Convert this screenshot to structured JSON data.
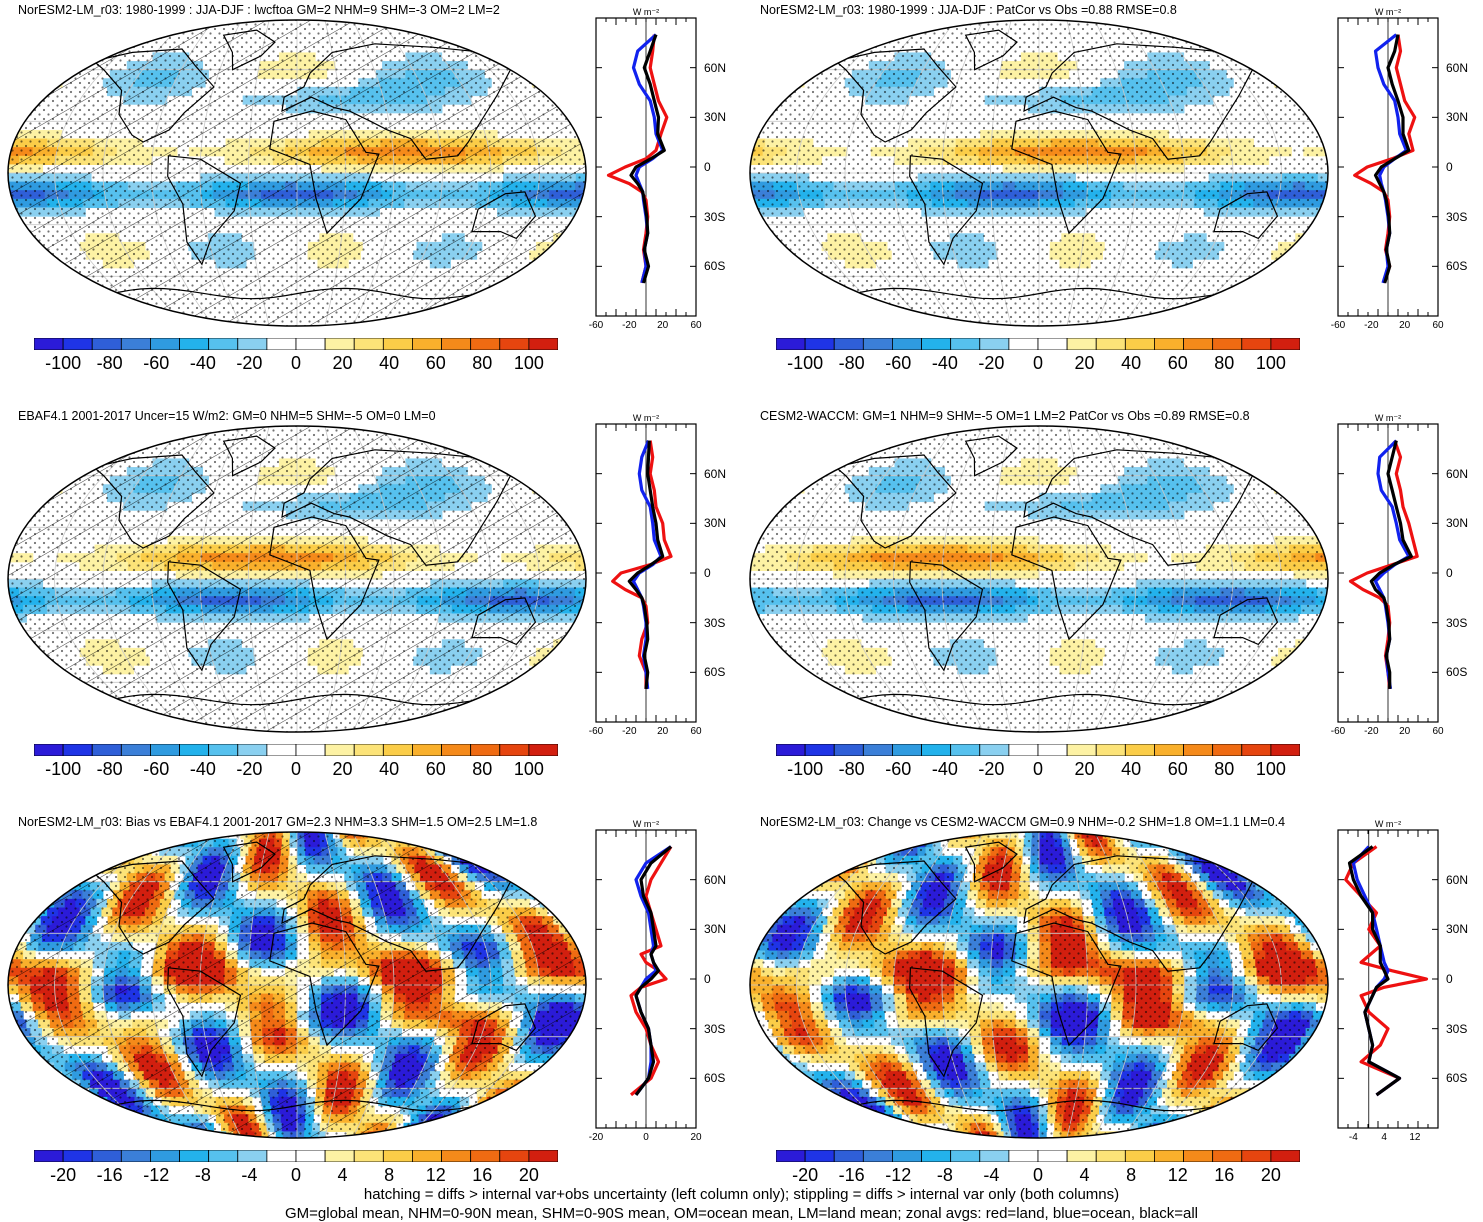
{
  "colors": {
    "palette": [
      "#2b1bd8",
      "#1f34e6",
      "#2f5fd8",
      "#3b7fd8",
      "#2f9be0",
      "#23b2ec",
      "#56c1ee",
      "#8ad0f0",
      "#ffffff",
      "#ffffff",
      "#fdf2a4",
      "#fce378",
      "#fbcd48",
      "#f9b02c",
      "#f58a1a",
      "#ef6b12",
      "#e6450f",
      "#d21f0f"
    ],
    "line_land": "#ee1111",
    "line_ocean": "#1122ee",
    "line_all": "#000000"
  },
  "panels": [
    {
      "title": "NorESM2-LM_r03: 1980-1999 : JJA-DJF : lwcftoa GM=2 NHM=9 SHM=-3 OM=2 LM=2",
      "hatch": true,
      "colorbar_labels": [
        "-100",
        "-80",
        "-60",
        "-40",
        "-20",
        "0",
        "20",
        "40",
        "60",
        "80",
        "100"
      ],
      "zonal_xticks": [
        "-60",
        "-20",
        "20",
        "60"
      ],
      "zonal_unit": "W m⁻²",
      "lat_labels": [
        "60N",
        "30N",
        "0",
        "30S",
        "60S"
      ]
    },
    {
      "title": "NorESM2-LM_r03: 1980-1999 : JJA-DJF : PatCor vs Obs =0.88 RMSE=0.8",
      "hatch": false,
      "colorbar_labels": [
        "-100",
        "-80",
        "-60",
        "-40",
        "-20",
        "0",
        "20",
        "40",
        "60",
        "80",
        "100"
      ],
      "zonal_xticks": [
        "-60",
        "-20",
        "20",
        "60"
      ],
      "zonal_unit": "W m⁻²",
      "lat_labels": [
        "60N",
        "30N",
        "0",
        "30S",
        "60S"
      ]
    },
    {
      "title": "EBAF4.1 2001-2017 Uncer=15 W/m2: GM=0 NHM=5 SHM=-5 OM=0 LM=0",
      "hatch": true,
      "colorbar_labels": [
        "-100",
        "-80",
        "-60",
        "-40",
        "-20",
        "0",
        "20",
        "40",
        "60",
        "80",
        "100"
      ],
      "zonal_xticks": [
        "-60",
        "-20",
        "20",
        "60"
      ],
      "zonal_unit": "W m⁻²",
      "lat_labels": [
        "60N",
        "30N",
        "0",
        "30S",
        "60S"
      ]
    },
    {
      "title": "CESM2-WACCM: GM=1 NHM=9 SHM=-5 OM=1 LM=2 PatCor vs Obs =0.89 RMSE=0.8",
      "hatch": false,
      "colorbar_labels": [
        "-100",
        "-80",
        "-60",
        "-40",
        "-20",
        "0",
        "20",
        "40",
        "60",
        "80",
        "100"
      ],
      "zonal_xticks": [
        "-60",
        "-20",
        "20",
        "60"
      ],
      "zonal_unit": "W m⁻²",
      "lat_labels": [
        "60N",
        "30N",
        "0",
        "30S",
        "60S"
      ]
    },
    {
      "title": "NorESM2-LM_r03: Bias vs EBAF4.1 2001-2017 GM=2.3 NHM=3.3 SHM=1.5 OM=2.5 LM=1.8",
      "hatch": true,
      "colorbar_labels": [
        "-20",
        "-16",
        "-12",
        "-8",
        "-4",
        "0",
        "4",
        "8",
        "12",
        "16",
        "20"
      ],
      "zonal_xticks": [
        "-20",
        "0",
        "20"
      ],
      "zonal_unit": "W m⁻²",
      "lat_labels": [
        "60N",
        "30N",
        "0",
        "30S",
        "60S"
      ]
    },
    {
      "title": "NorESM2-LM_r03: Change vs CESM2-WACCM GM=0.9 NHM=-0.2 SHM=1.8 OM=1.1 LM=0.4",
      "hatch": false,
      "colorbar_labels": [
        "-20",
        "-16",
        "-12",
        "-8",
        "-4",
        "0",
        "4",
        "8",
        "12",
        "16",
        "20"
      ],
      "zonal_xticks": [
        "-4",
        "4",
        "12"
      ],
      "zonal_unit": "W m⁻²",
      "lat_labels": [
        "60N",
        "30N",
        "0",
        "30S",
        "60S"
      ]
    }
  ],
  "footer": [
    "hatching = diffs > internal var+obs uncertainty (left column only); stippling = diffs > internal var only (both columns)",
    "GM=global mean, NHM=0-90N mean, SHM=0-90S mean, OM=ocean mean, LM=land mean; zonal avgs: red=land, blue=ocean, black=all"
  ],
  "chart_data": [
    {
      "type": "heatmap",
      "title": "NorESM2-LM_r03: 1980-1999 : JJA-DJF : lwcftoa GM=2 NHM=9 SHM=-3 OM=2 LM=2",
      "units": "W m-2",
      "colorbar_range": [
        -100,
        100
      ],
      "colorbar_step": 20,
      "zonal_mean": {
        "type": "line",
        "xlim": [
          -60,
          60
        ],
        "lat": [
          80,
          70,
          60,
          50,
          40,
          30,
          20,
          10,
          5,
          0,
          -5,
          -10,
          -15,
          -20,
          -30,
          -40,
          -50,
          -60,
          -70
        ],
        "series": [
          {
            "name": "land",
            "values": [
              10,
              8,
              5,
              10,
              15,
              25,
              18,
              12,
              0,
              -25,
              -45,
              -20,
              -5,
              0,
              2,
              0,
              -3,
              0,
              -5
            ]
          },
          {
            "name": "ocean",
            "values": [
              12,
              -10,
              -15,
              -8,
              5,
              10,
              12,
              20,
              8,
              -8,
              -12,
              -8,
              -4,
              -3,
              0,
              2,
              -2,
              0,
              -5
            ]
          },
          {
            "name": "all",
            "values": [
              12,
              5,
              -2,
              5,
              10,
              15,
              14,
              22,
              6,
              -12,
              -18,
              -10,
              -4,
              -2,
              1,
              2,
              -2,
              3,
              -3
            ]
          }
        ]
      }
    },
    {
      "type": "heatmap",
      "title": "NorESM2-LM_r03: 1980-1999 : JJA-DJF : PatCor vs Obs =0.88 RMSE=0.8",
      "units": "W m-2",
      "colorbar_range": [
        -100,
        100
      ],
      "colorbar_step": 20,
      "zonal_mean": {
        "type": "line",
        "xlim": [
          -60,
          60
        ],
        "lat": [
          80,
          70,
          60,
          50,
          40,
          30,
          20,
          10,
          5,
          0,
          -5,
          -10,
          -15,
          -20,
          -30,
          -40,
          -50,
          -60,
          -70
        ],
        "series": [
          {
            "name": "land",
            "values": [
              12,
              15,
              10,
              15,
              20,
              32,
              25,
              30,
              5,
              -25,
              -40,
              -20,
              -5,
              0,
              2,
              0,
              -3,
              2,
              -5
            ]
          },
          {
            "name": "ocean",
            "values": [
              10,
              -15,
              -12,
              -5,
              8,
              12,
              14,
              22,
              8,
              -5,
              -10,
              -8,
              -5,
              -3,
              0,
              2,
              -2,
              0,
              -6
            ]
          },
          {
            "name": "all",
            "values": [
              12,
              8,
              0,
              5,
              12,
              18,
              18,
              25,
              8,
              -8,
              -15,
              -10,
              -5,
              -2,
              1,
              2,
              -2,
              2,
              -4
            ]
          }
        ]
      }
    },
    {
      "type": "heatmap",
      "title": "EBAF4.1 2001-2017 Uncer=15 W/m2: GM=0 NHM=5 SHM=-5 OM=0 LM=0",
      "units": "W m-2",
      "colorbar_range": [
        -100,
        100
      ],
      "colorbar_step": 20,
      "zonal_mean": {
        "type": "line",
        "xlim": [
          -60,
          60
        ],
        "lat": [
          80,
          70,
          60,
          50,
          40,
          30,
          20,
          10,
          5,
          0,
          -5,
          -10,
          -15,
          -20,
          -30,
          -40,
          -50,
          -60,
          -70
        ],
        "series": [
          {
            "name": "land",
            "values": [
              5,
              8,
              5,
              10,
              12,
              20,
              22,
              30,
              5,
              -30,
              -40,
              -25,
              -5,
              0,
              2,
              -5,
              -8,
              0,
              0
            ]
          },
          {
            "name": "ocean",
            "values": [
              3,
              -5,
              -8,
              -5,
              5,
              8,
              10,
              18,
              8,
              -8,
              -15,
              -10,
              -5,
              -3,
              0,
              0,
              -3,
              0,
              2
            ]
          },
          {
            "name": "all",
            "values": [
              4,
              3,
              2,
              5,
              8,
              12,
              14,
              20,
              6,
              -10,
              -20,
              -12,
              -5,
              -2,
              1,
              2,
              -2,
              2,
              0
            ]
          }
        ]
      }
    },
    {
      "type": "heatmap",
      "title": "CESM2-WACCM: GM=1 NHM=9 SHM=-5 OM=1 LM=2 PatCor vs Obs =0.89 RMSE=0.8",
      "units": "W m-2",
      "colorbar_range": [
        -100,
        100
      ],
      "colorbar_step": 20,
      "zonal_mean": {
        "type": "line",
        "xlim": [
          -60,
          60
        ],
        "lat": [
          80,
          70,
          60,
          50,
          40,
          30,
          20,
          10,
          5,
          0,
          -5,
          -10,
          -15,
          -20,
          -30,
          -40,
          -50,
          -60,
          -70
        ],
        "series": [
          {
            "name": "land",
            "values": [
              8,
              15,
              10,
              15,
              18,
              25,
              30,
              35,
              5,
              -25,
              -45,
              -30,
              -10,
              0,
              2,
              0,
              -3,
              0,
              2
            ]
          },
          {
            "name": "ocean",
            "values": [
              10,
              -10,
              -12,
              -8,
              5,
              10,
              14,
              25,
              8,
              -5,
              -15,
              -10,
              -5,
              -3,
              0,
              2,
              -2,
              0,
              3
            ]
          },
          {
            "name": "all",
            "values": [
              10,
              5,
              0,
              5,
              10,
              15,
              18,
              28,
              7,
              -10,
              -20,
              -15,
              -5,
              -2,
              1,
              2,
              -2,
              2,
              2
            ]
          }
        ]
      }
    },
    {
      "type": "heatmap",
      "title": "NorESM2-LM_r03: Bias vs EBAF4.1 2001-2017 GM=2.3 NHM=3.3 SHM=1.5 OM=2.5 LM=1.8",
      "units": "W m-2",
      "colorbar_range": [
        -20,
        20
      ],
      "colorbar_step": 4,
      "zonal_mean": {
        "type": "line",
        "xlim": [
          -20,
          20
        ],
        "lat": [
          80,
          70,
          60,
          50,
          40,
          30,
          20,
          15,
          10,
          5,
          0,
          -5,
          -10,
          -20,
          -30,
          -40,
          -50,
          -60,
          -70
        ],
        "series": [
          {
            "name": "land",
            "values": [
              10,
              6,
              2,
              0,
              2,
              4,
              6,
              -2,
              0,
              5,
              8,
              -2,
              -6,
              -4,
              0,
              2,
              5,
              2,
              -6
            ]
          },
          {
            "name": "ocean",
            "values": [
              10,
              0,
              -4,
              -2,
              1,
              2,
              3,
              2,
              3,
              4,
              0,
              -2,
              -4,
              -2,
              1,
              2,
              2,
              1,
              -4
            ]
          },
          {
            "name": "all",
            "values": [
              10,
              2,
              -2,
              -1,
              2,
              3,
              4,
              2,
              3,
              5,
              2,
              -2,
              -4,
              -2,
              1,
              2,
              3,
              1,
              -4
            ]
          }
        ]
      }
    },
    {
      "type": "heatmap",
      "title": "NorESM2-LM_r03: Change vs CESM2-WACCM GM=0.9 NHM=-0.2 SHM=1.8 OM=1.1 LM=0.4",
      "units": "W m-2",
      "colorbar_range": [
        -20,
        20
      ],
      "colorbar_step": 4,
      "zonal_mean": {
        "type": "line",
        "xlim": [
          -8,
          18
        ],
        "lat": [
          80,
          70,
          60,
          50,
          40,
          30,
          20,
          10,
          5,
          0,
          -5,
          -10,
          -20,
          -30,
          -40,
          -50,
          -60,
          -70
        ],
        "series": [
          {
            "name": "land",
            "values": [
              2,
              -4,
              -6,
              -2,
              2,
              0,
              3,
              -2,
              6,
              15,
              4,
              -2,
              0,
              5,
              3,
              -2,
              8,
              2
            ]
          },
          {
            "name": "ocean",
            "values": [
              0,
              -4,
              -3,
              -1,
              1,
              2,
              3,
              4,
              5,
              4,
              2,
              1,
              -1,
              0,
              1,
              0,
              8,
              2
            ]
          },
          {
            "name": "all",
            "values": [
              1,
              -5,
              -4,
              -2,
              1,
              1,
              3,
              3,
              4,
              5,
              2,
              1,
              -1,
              0,
              1,
              0,
              8,
              2
            ]
          }
        ]
      }
    }
  ]
}
